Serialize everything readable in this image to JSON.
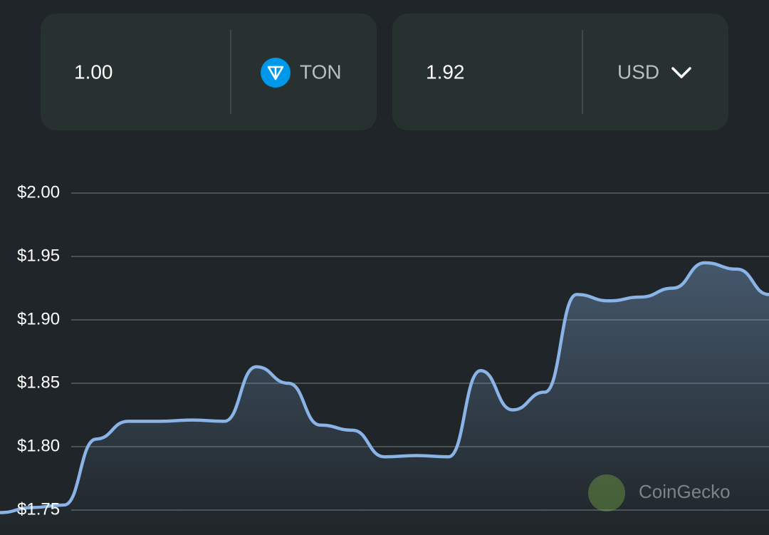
{
  "converter": {
    "from_amount": "1.00",
    "from_currency": "TON",
    "to_amount": "1.92",
    "to_currency": "USD"
  },
  "chart_data": {
    "type": "line",
    "values": [
      1.748,
      1.752,
      1.754,
      1.806,
      1.82,
      1.82,
      1.821,
      1.82,
      1.863,
      1.85,
      1.817,
      1.813,
      1.792,
      1.793,
      1.792,
      1.86,
      1.829,
      1.843,
      1.92,
      1.915,
      1.918,
      1.925,
      1.945,
      1.94,
      1.92
    ],
    "color": "#8ab4e8",
    "ylim": [
      1.73,
      2.02
    ],
    "yticks": [
      {
        "value": 1.75,
        "label": "$1.75"
      },
      {
        "value": 1.8,
        "label": "$1.80"
      },
      {
        "value": 1.85,
        "label": "$1.85"
      },
      {
        "value": 1.9,
        "label": "$1.90"
      },
      {
        "value": 1.95,
        "label": "$1.95"
      },
      {
        "value": 2.0,
        "label": "$2.00"
      }
    ],
    "grid": true,
    "watermark": "CoinGecko"
  }
}
